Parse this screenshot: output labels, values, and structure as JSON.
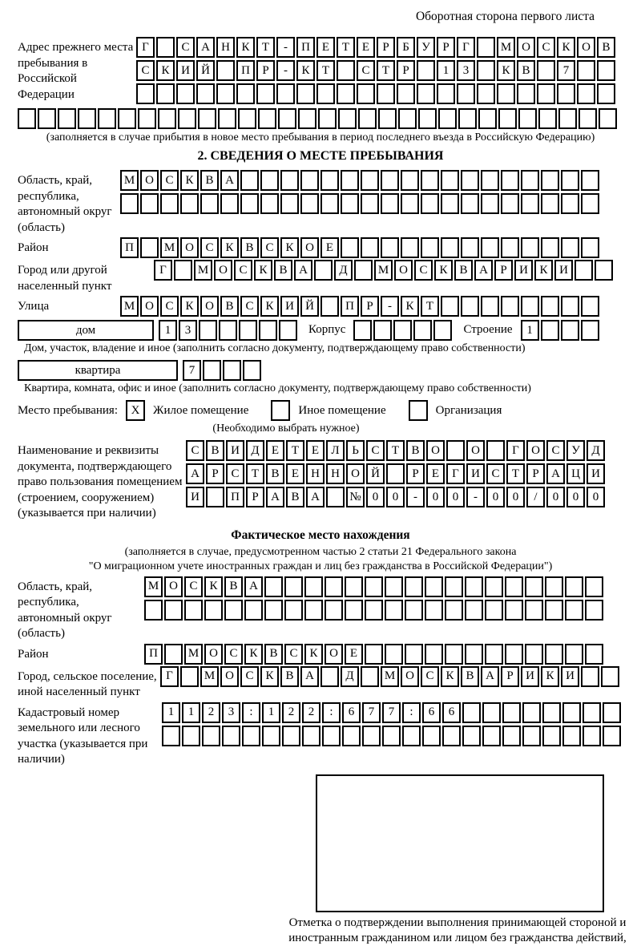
{
  "header": {
    "title": "Оборотная сторона первого листа"
  },
  "prev_address": {
    "label": "Адрес прежнего места пребывания в Российской Федерации",
    "rows": [
      "Г САНКТ-ПЕТЕРБУРГ МОСКОВ",
      "СКИЙ ПР-КТ СТР 13 КВ 7  ",
      "                        "
    ],
    "full_row": "                              ",
    "note": "(заполняется в случае прибытия в новое место пребывания в период последнего въезда в Российскую Федерацию)"
  },
  "section2": {
    "title": "2. СВЕДЕНИЯ О МЕСТЕ ПРЕБЫВАНИЯ",
    "region": {
      "label": "Область, край, республика, автономный округ (область)",
      "rows": [
        "МОСКВА                  ",
        "                        "
      ]
    },
    "district": {
      "label": "Район",
      "row": "П МОСКВСКОЕ             "
    },
    "city": {
      "label": "Город или другой населенный пункт",
      "row": "Г МОСКВА Д МОСКВАРИКИ  "
    },
    "street": {
      "label": "Улица",
      "row": "МОСКОВСКИЙ ПР-КТ        "
    },
    "house": {
      "box_label": "дом",
      "cells": "13     ",
      "korpus_label": "Корпус",
      "korpus_cells": "     ",
      "stroenie_label": "Строение",
      "stroenie_cells": "1   "
    },
    "house_caption": "Дом, участок, владение и иное (заполнить согласно документу, подтверждающему право собственности)",
    "apartment": {
      "box_label": "квартира",
      "cells": "7   "
    },
    "apartment_caption": "Квартира, комната, офис и иное (заполнить согласно документу, подтверждающему право собственности)",
    "stay": {
      "label": "Место пребывания:",
      "options": [
        {
          "mark": "X",
          "label": "Жилое помещение"
        },
        {
          "mark": "",
          "label": "Иное помещение"
        },
        {
          "mark": "",
          "label": "Организация"
        }
      ],
      "note": "(Необходимо выбрать нужное)"
    },
    "document": {
      "label": "Наименование и реквизиты документа, подтверждающего право пользования помещением (строением, сооружением) (указывается при наличии)",
      "rows": [
        "СВИДЕТЕЛЬСТВО О ГОСУД",
        "АРСТВЕННОЙ РЕГИСТРАЦИ",
        "И ПРАВА №00-00-00/000"
      ]
    }
  },
  "actual_location": {
    "title": "Фактическое место нахождения",
    "note1": "(заполняется в случае, предусмотренном частью 2 статьи 21 Федерального закона",
    "note2": "\"О миграционном учете иностранных граждан и лиц без гражданства в Российской Федерации\")",
    "region": {
      "label": "Область, край, республика, автономный округ (область)",
      "rows": [
        "МОСКВА                 ",
        "                       "
      ]
    },
    "district": {
      "label": "Район",
      "row": "П МОСКВСКОЕ            "
    },
    "city": {
      "label": "Город, сельское поселение, иной населенный пункт",
      "row": "Г МОСКВА Д МОСКВАРИКИ  "
    },
    "cadastral": {
      "label": "Кадастровый номер земельного или лесного участка (указывается при наличии)",
      "rows": [
        "1123:122:677:66        ",
        "                       "
      ]
    },
    "stamp_caption": "Отметка о подтверждении выполнения принимающей стороной и иностранным гражданином или лицом без гражданства действий, необходимых для его постановки на учет по месту пребывания"
  }
}
